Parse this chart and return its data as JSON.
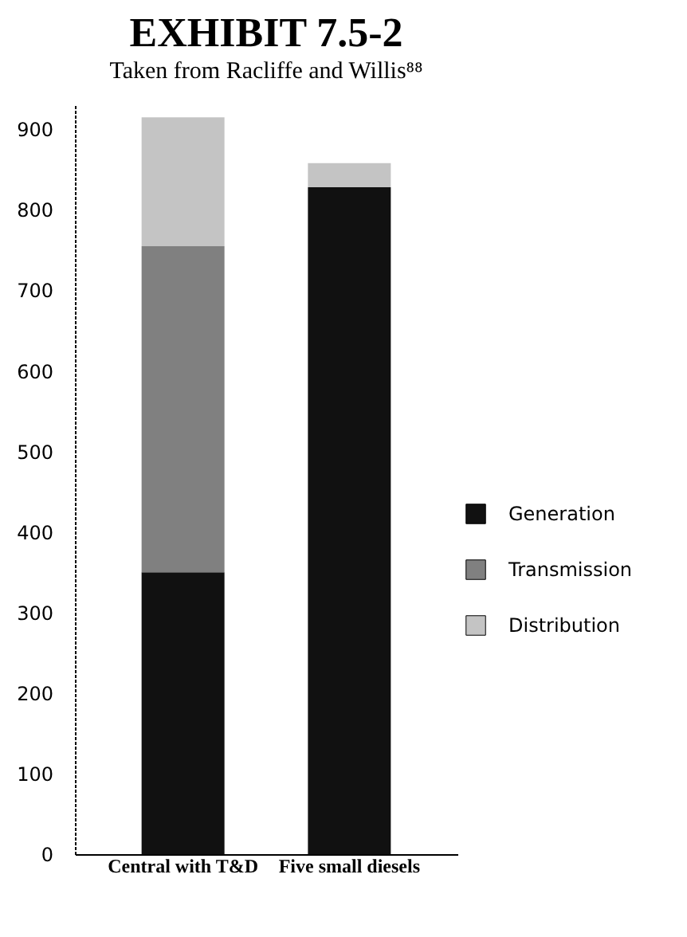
{
  "chart_data": {
    "type": "bar",
    "title": "EXHIBIT 7.5-2",
    "subtitle": "Taken from Racliffe and Willis⁸⁸",
    "categories": [
      "Central with T&D",
      "Five small diesels"
    ],
    "series": [
      {
        "name": "Generation",
        "color": "#111111",
        "values": [
          350,
          828
        ]
      },
      {
        "name": "Transmission",
        "color": "#808080",
        "values": [
          405,
          0
        ]
      },
      {
        "name": "Distribution",
        "color": "#c4c4c4",
        "values": [
          160,
          30
        ]
      }
    ],
    "stacked": true,
    "ylim": [
      0,
      930
    ],
    "yticks": [
      0,
      100,
      200,
      300,
      400,
      500,
      600,
      700,
      800,
      900
    ],
    "grid": false,
    "legend": "right"
  }
}
